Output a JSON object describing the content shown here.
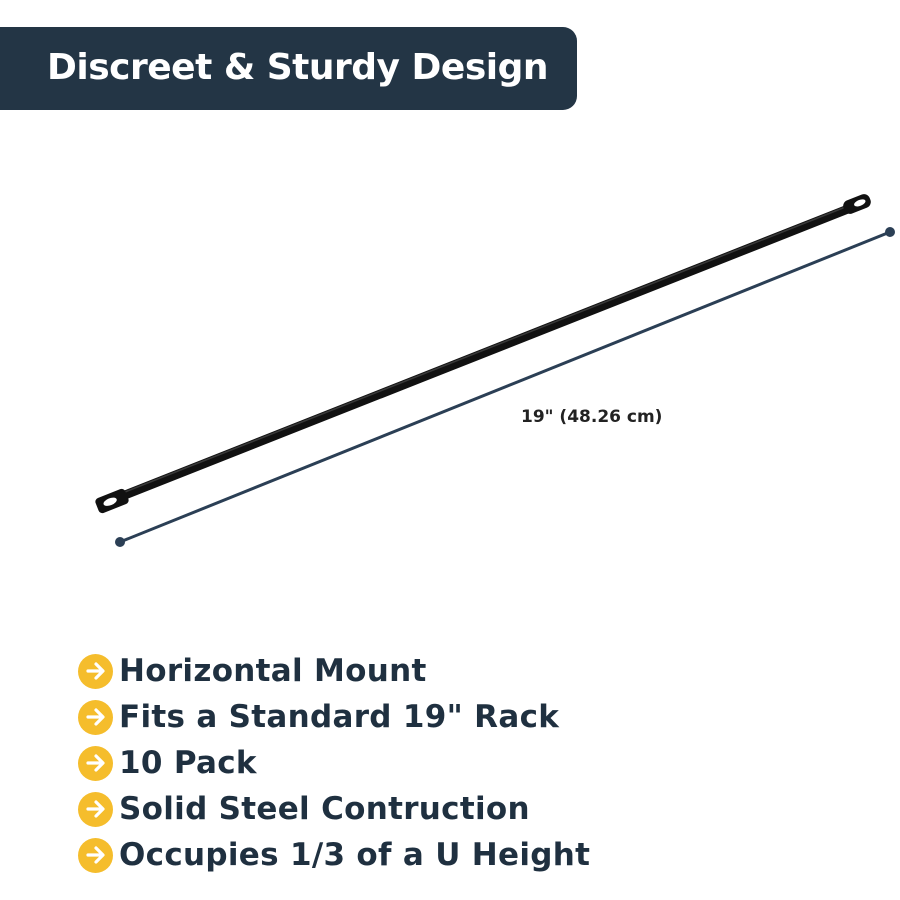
{
  "header": {
    "title": "Discreet & Sturdy Design"
  },
  "dimension": {
    "label": "19\" (48.26 cm)"
  },
  "features": [
    {
      "icon": "arrow-right-circle-icon",
      "text": "Horizontal Mount"
    },
    {
      "icon": "arrow-right-circle-icon",
      "text": "Fits a Standard 19\" Rack"
    },
    {
      "icon": "arrow-right-circle-icon",
      "text": "10 Pack"
    },
    {
      "icon": "arrow-right-circle-icon",
      "text": "Solid Steel Contruction"
    },
    {
      "icon": "arrow-right-circle-icon",
      "text": "Occupies 1/3 of a U Height"
    }
  ],
  "colors": {
    "banner": "#233545",
    "bullet": "#f5bd2c",
    "text": "#1f3040",
    "dimension_line": "#2b3f55"
  }
}
